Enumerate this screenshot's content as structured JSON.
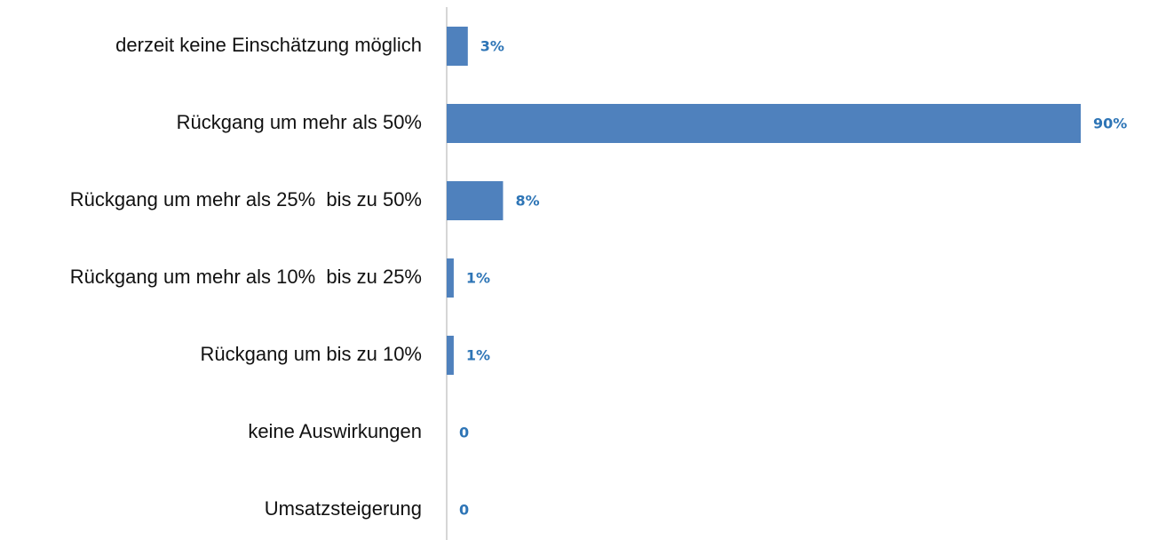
{
  "chart_data": {
    "type": "bar",
    "orientation": "horizontal",
    "categories": [
      "derzeit keine Einschätzung möglich",
      "Rückgang um mehr als 50%",
      "Rückgang um mehr als 25%  bis zu 50%",
      "Rückgang um mehr als 10%  bis zu 25%",
      "Rückgang um bis zu 10%",
      "keine Auswirkungen",
      "Umsatzsteigerung"
    ],
    "values": [
      3,
      90,
      8,
      1,
      1,
      0,
      0
    ],
    "value_labels": [
      "3%",
      "90%",
      "8%",
      "1%",
      "1%",
      "0",
      "0"
    ],
    "color": "#4f81bd",
    "label_color": "#2e75b6"
  }
}
